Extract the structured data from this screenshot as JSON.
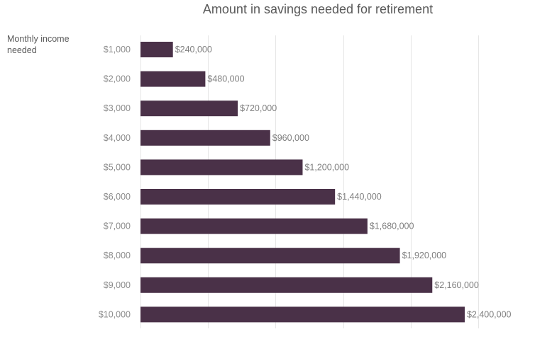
{
  "chart_data": {
    "type": "bar",
    "orientation": "horizontal",
    "title": "Amount in savings needed for retirement",
    "ylabel_lines": [
      "Monthly income",
      "needed"
    ],
    "xlabel": "",
    "categories": [
      "$1,000",
      "$2,000",
      "$3,000",
      "$4,000",
      "$5,000",
      "$6,000",
      "$7,000",
      "$8,000",
      "$9,000",
      "$10,000"
    ],
    "values": [
      240000,
      480000,
      720000,
      960000,
      1200000,
      1440000,
      1680000,
      1920000,
      2160000,
      2400000
    ],
    "data_labels": [
      "$240,000",
      "$480,000",
      "$720,000",
      "$960,000",
      "$1,200,000",
      "$1,440,000",
      "$1,680,000",
      "$1,920,000",
      "$2,160,000",
      "$2,400,000"
    ],
    "xlim": [
      0,
      2500000
    ],
    "x_gridlines": [
      0,
      500000,
      1000000,
      1500000,
      2000000,
      2500000
    ],
    "x_tick_labels_shown": false,
    "grid": true,
    "legend": "none",
    "bar_color": "#4a3148",
    "grid_color": "#e6e6e6"
  }
}
